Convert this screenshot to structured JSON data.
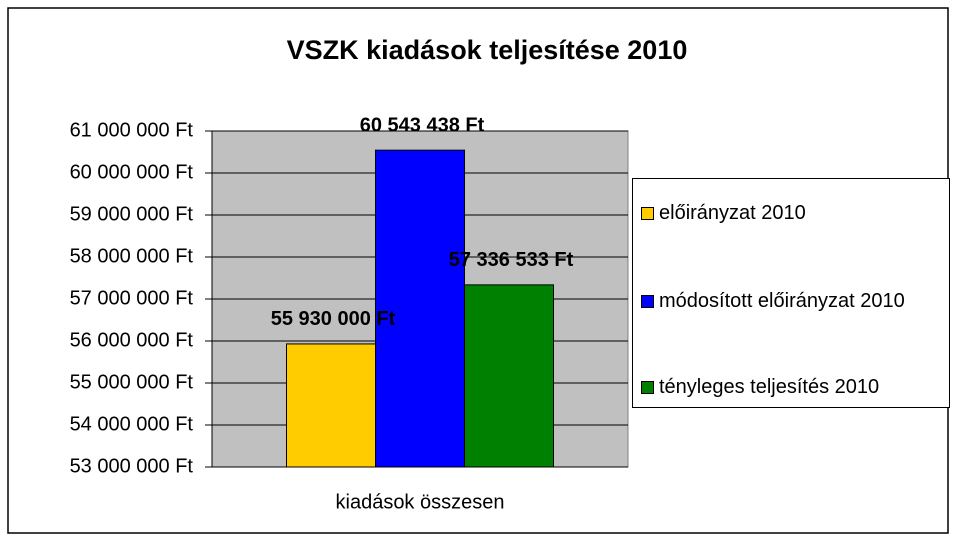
{
  "chart_data": {
    "type": "bar",
    "title": "VSZK kiadások teljesítése 2010",
    "categories": [
      "kiadások összesen"
    ],
    "series": [
      {
        "name": "előirányzat 2010",
        "color": "#ffcc00",
        "values": [
          55930000
        ],
        "value_labels": [
          "55 930 000 Ft"
        ]
      },
      {
        "name": "módosított előirányzat 2010",
        "color": "#0000ff",
        "values": [
          60543438
        ],
        "value_labels": [
          "60 543 438 Ft"
        ]
      },
      {
        "name": "tényleges teljesítés 2010",
        "color": "#008000",
        "values": [
          57336533
        ],
        "value_labels": [
          "57 336 533 Ft"
        ]
      }
    ],
    "ylim": [
      53000000,
      61000000
    ],
    "yticks": [
      {
        "value": 53000000,
        "label": "53 000 000 Ft"
      },
      {
        "value": 54000000,
        "label": "54 000 000 Ft"
      },
      {
        "value": 55000000,
        "label": "55 000 000 Ft"
      },
      {
        "value": 56000000,
        "label": "56 000 000 Ft"
      },
      {
        "value": 57000000,
        "label": "57 000 000 Ft"
      },
      {
        "value": 58000000,
        "label": "58 000 000 Ft"
      },
      {
        "value": 59000000,
        "label": "59 000 000 Ft"
      },
      {
        "value": 60000000,
        "label": "60 000 000 Ft"
      },
      {
        "value": 61000000,
        "label": "61 000 000 Ft"
      }
    ],
    "grid": true,
    "legend": "right"
  }
}
